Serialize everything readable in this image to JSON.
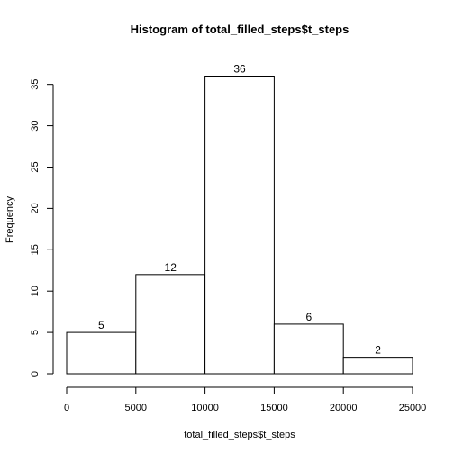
{
  "chart_data": {
    "type": "bar",
    "title": "Histogram of total_filled_steps$t_steps",
    "xlabel": "total_filled_steps$t_steps",
    "ylabel": "Frequency",
    "bins": [
      {
        "from": 0,
        "to": 5000,
        "count": 5
      },
      {
        "from": 5000,
        "to": 10000,
        "count": 12
      },
      {
        "from": 10000,
        "to": 15000,
        "count": 36
      },
      {
        "from": 15000,
        "to": 20000,
        "count": 6
      },
      {
        "from": 20000,
        "to": 25000,
        "count": 2
      }
    ],
    "x_ticks": [
      0,
      5000,
      10000,
      15000,
      20000,
      25000
    ],
    "y_ticks": [
      0,
      5,
      10,
      15,
      20,
      25,
      30,
      35
    ],
    "xlim": [
      0,
      25000
    ],
    "ylim": [
      0,
      36
    ],
    "grid": false,
    "colors": {
      "bar_fill": "#ffffff",
      "bar_stroke": "#000000"
    }
  }
}
